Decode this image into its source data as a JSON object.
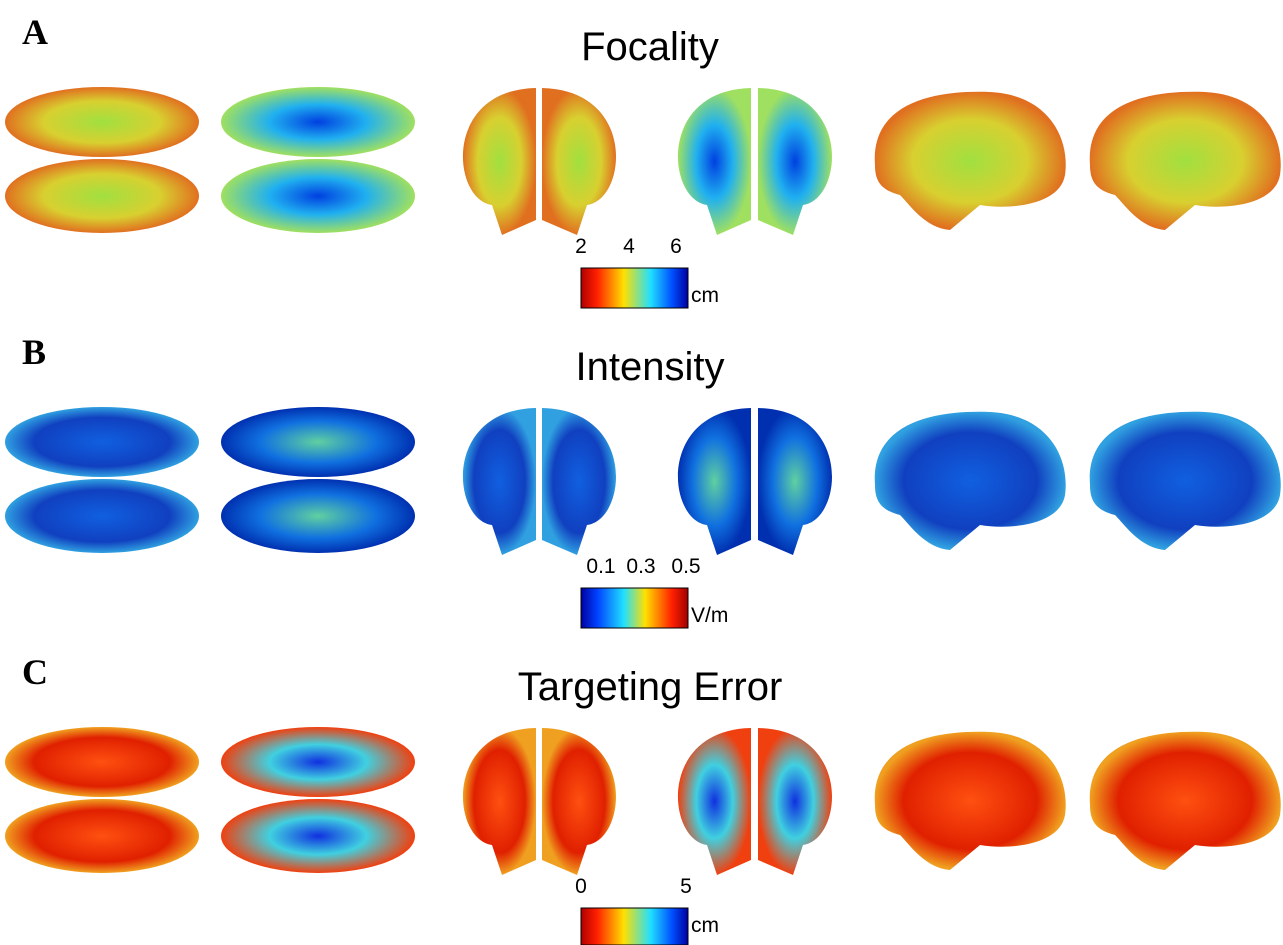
{
  "panels": [
    {
      "letter": "A",
      "title": "Focality",
      "colorbar": {
        "ticks": [
          2,
          4,
          6
        ],
        "unit": "cm"
      }
    },
    {
      "letter": "B",
      "title": "Intensity",
      "colorbar": {
        "ticks": [
          0.1,
          0.3,
          0.5
        ],
        "unit": "V/m"
      }
    },
    {
      "letter": "C",
      "title": "Targeting Error",
      "colorbar": {
        "ticks": [
          0,
          5
        ],
        "unit": "cm"
      }
    }
  ]
}
